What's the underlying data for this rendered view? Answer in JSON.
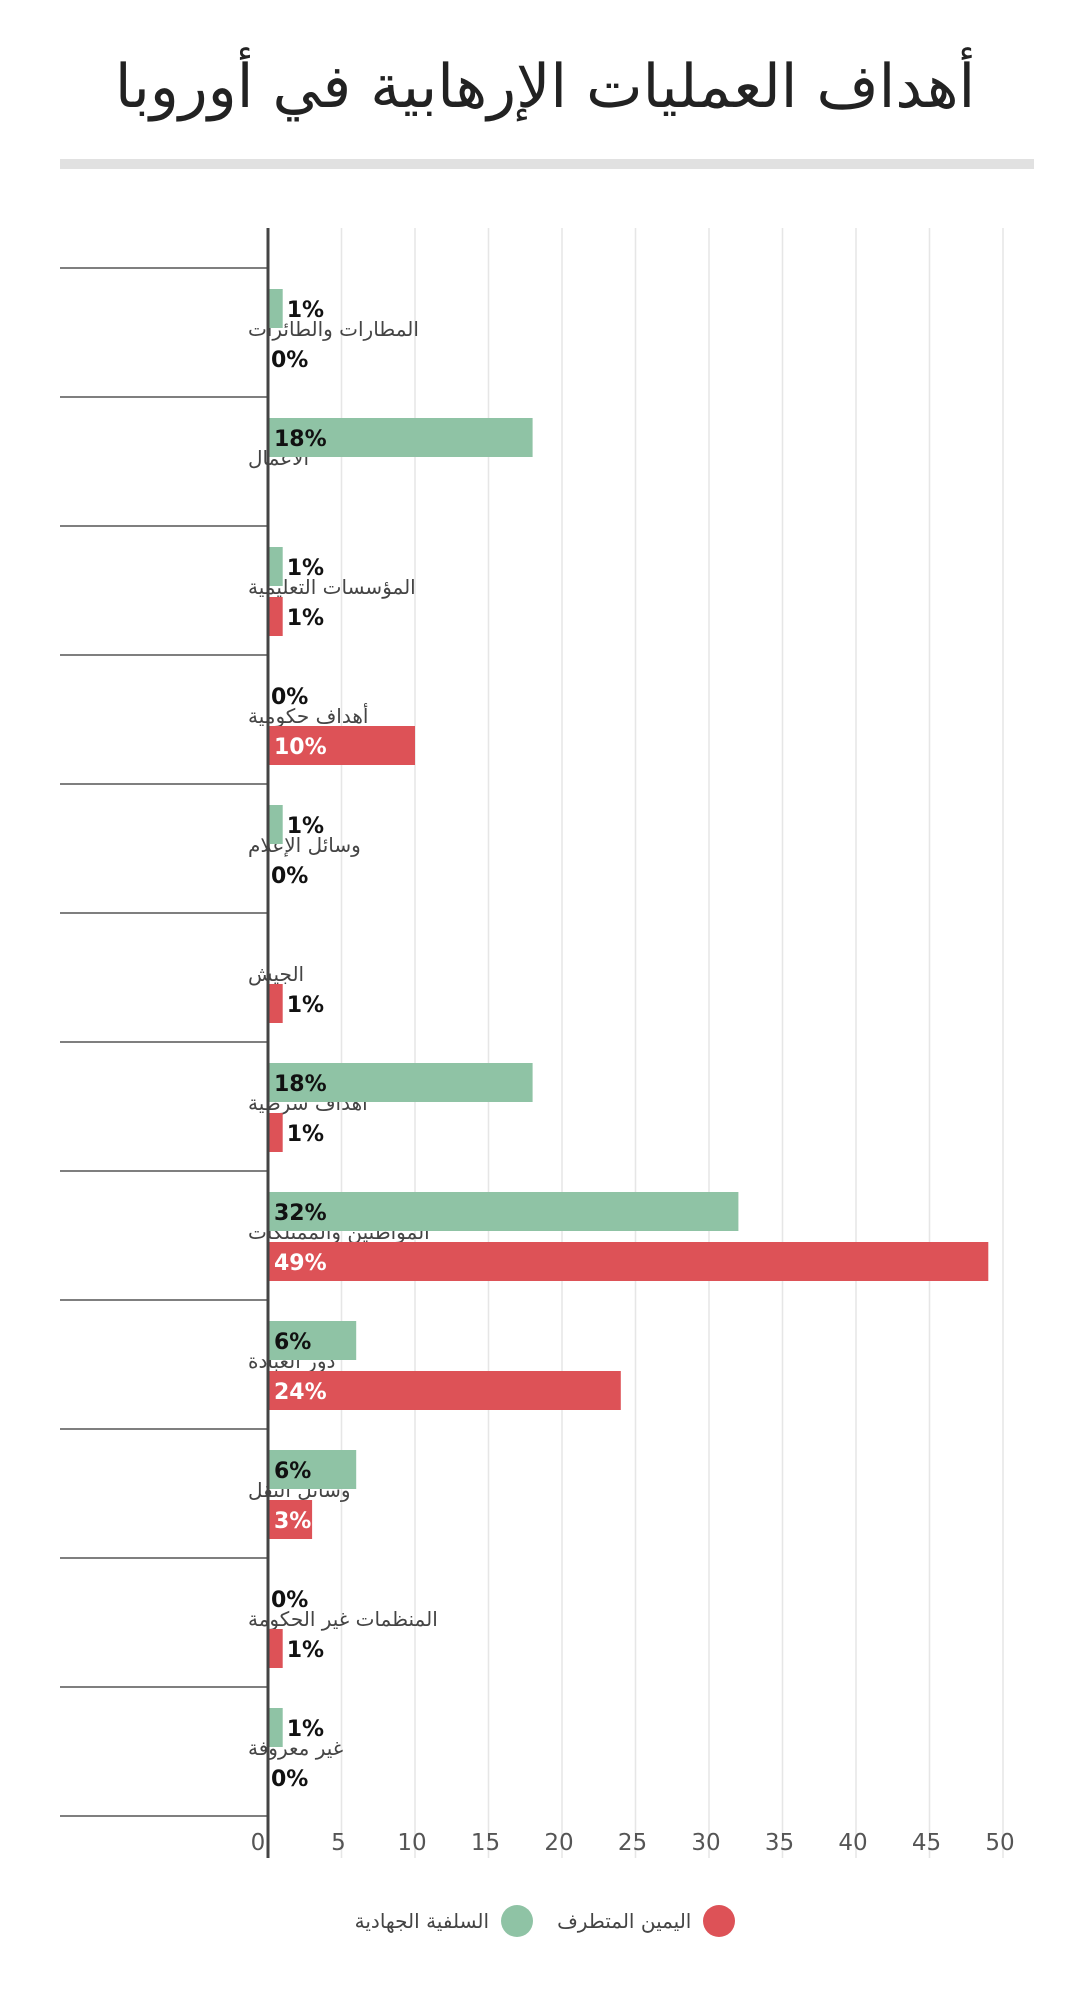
{
  "chart_data": {
    "type": "bar",
    "orientation": "horizontal",
    "title": "أهداف العمليات الإرهابية في أوروبا",
    "categories": [
      "المطارات والطائرات",
      "الاعمال",
      "المؤسسات التعليمية",
      "أهداف حكومية",
      "وسائل الإعلام",
      "الجيش",
      "أهداف شرطية",
      "المواطنين والممتلكات",
      "دور العبادة",
      "وسائل النقل",
      "المنظمات غير الحكومة",
      "غير معروفة"
    ],
    "series": [
      {
        "name": "السلفية الجهادية",
        "color": "#8fc3a5",
        "values": [
          1,
          18,
          1,
          0,
          1,
          null,
          18,
          32,
          6,
          6,
          0,
          1
        ],
        "labels": [
          "1%",
          "18%",
          "1%",
          "0%",
          "1%",
          "",
          "18%",
          "32%",
          "6%",
          "6%",
          "0%",
          "1%"
        ]
      },
      {
        "name": "اليمين المتطرف",
        "color": "#dd5257",
        "values": [
          0,
          null,
          1,
          10,
          0,
          1,
          1,
          49,
          24,
          3,
          1,
          0
        ],
        "labels": [
          "0%",
          "",
          "1%",
          "10%",
          "0%",
          "1%",
          "1%",
          "49%",
          "24%",
          "3%",
          "1%",
          "0%"
        ]
      }
    ],
    "xlim": [
      0,
      50
    ],
    "xticks": [
      "0",
      "5",
      "10",
      "15",
      "20",
      "25",
      "30",
      "35",
      "40",
      "45",
      "50"
    ],
    "grid": true,
    "legend_position": "bottom"
  }
}
